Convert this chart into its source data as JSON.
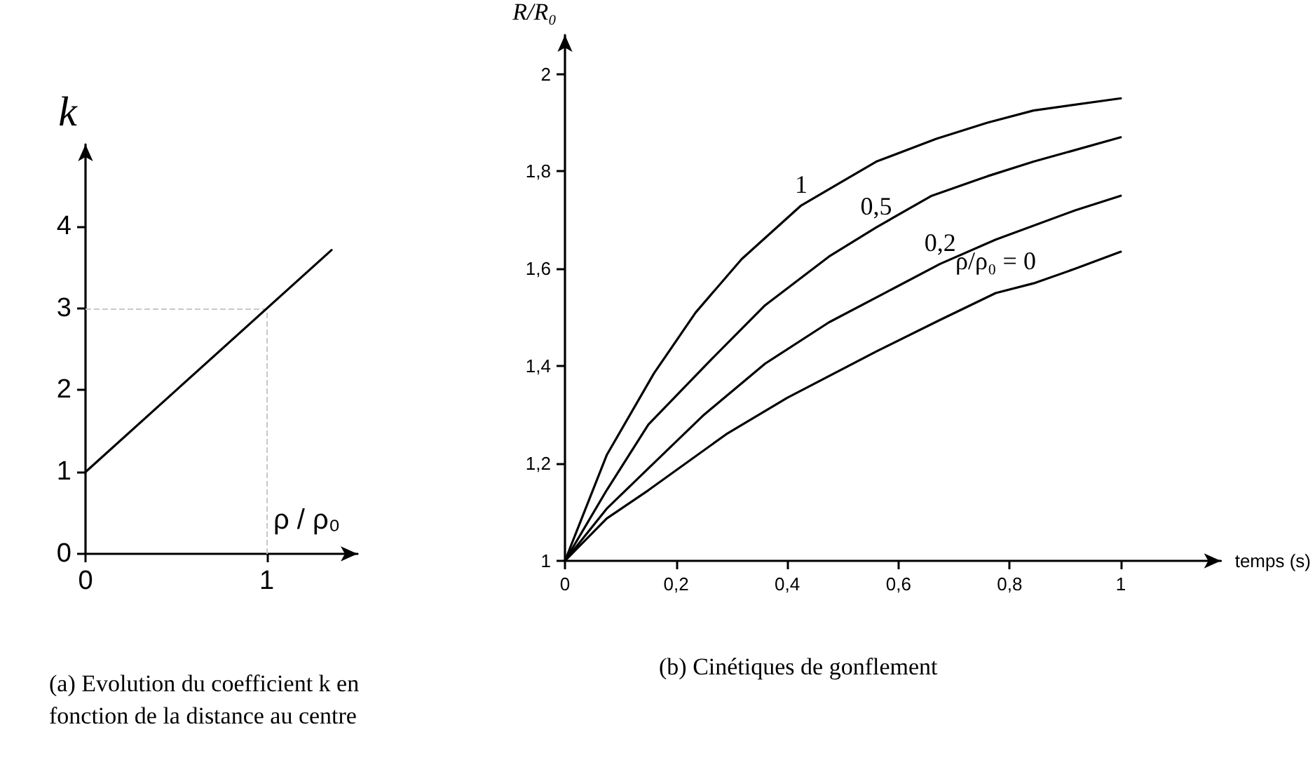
{
  "chart_data": [
    {
      "type": "line",
      "title": "(a) Evolution du coefficient k en fonction de la distance au centre",
      "xlabel": "ρ / ρ₀",
      "ylabel": "k",
      "x": [
        0,
        1.357
      ],
      "xlim": [
        0,
        1.5
      ],
      "ylim": [
        0,
        5
      ],
      "xticks": [
        0,
        1
      ],
      "yticks": [
        0,
        1,
        2,
        3,
        4
      ],
      "grid": false,
      "legend": false,
      "marker": "none",
      "line_style": "solid",
      "series": [
        {
          "color": "#000000",
          "values": [
            1,
            3.71
          ]
        }
      ],
      "ref_lines": [
        {
          "axis": "x",
          "value": 1,
          "color": "#c8c8c8",
          "line_style": "dashed"
        },
        {
          "axis": "y",
          "value": 3,
          "color": "#c8c8c8",
          "line_style": "dashed"
        }
      ]
    },
    {
      "type": "line",
      "title": "(b) Cinétiques de gonflement",
      "xlabel": "temps (s)",
      "ylabel": "R/R₀",
      "xlim": [
        0,
        1.18
      ],
      "ylim": [
        1,
        2.08
      ],
      "grid": false,
      "legend": false,
      "marker": "none",
      "line_style": "solid",
      "xticks": [
        {
          "value": 0,
          "label": "0"
        },
        {
          "value": 0.2,
          "label": "0,2"
        },
        {
          "value": 0.4,
          "label": "0,4"
        },
        {
          "value": 0.6,
          "label": "0,6"
        },
        {
          "value": 0.8,
          "label": "0,8"
        },
        {
          "value": 1,
          "label": "1"
        }
      ],
      "yticks": [
        {
          "value": 1,
          "label": "1"
        },
        {
          "value": 1.2,
          "label": "1,2"
        },
        {
          "value": 1.4,
          "label": "1,4"
        },
        {
          "value": 1.6,
          "label": "1,6"
        },
        {
          "value": 1.8,
          "label": "1,8"
        },
        {
          "value": 2,
          "label": "2"
        }
      ],
      "series": [
        {
          "name": "1",
          "color": "#000000",
          "x": [
            0,
            0.075,
            0.16,
            0.235,
            0.318,
            0.425,
            0.56,
            0.668,
            0.76,
            0.843,
            1.0
          ],
          "values": [
            1,
            1.217,
            1.385,
            1.51,
            1.62,
            1.73,
            1.82,
            1.867,
            1.9,
            1.925,
            1.95
          ]
        },
        {
          "name": "0,5",
          "color": "#000000",
          "x": [
            0,
            0.075,
            0.15,
            0.26,
            0.36,
            0.475,
            0.56,
            0.66,
            0.76,
            0.843,
            1.0
          ],
          "values": [
            1,
            1.145,
            1.28,
            1.41,
            1.525,
            1.625,
            1.685,
            1.75,
            1.79,
            1.82,
            1.87
          ]
        },
        {
          "name": "0,2",
          "color": "#000000",
          "x": [
            0,
            0.075,
            0.15,
            0.25,
            0.36,
            0.475,
            0.575,
            0.675,
            0.775,
            0.918,
            1.0
          ],
          "values": [
            1,
            1.107,
            1.19,
            1.3,
            1.405,
            1.49,
            1.55,
            1.61,
            1.66,
            1.72,
            1.75
          ]
        },
        {
          "name": "ρ/ρ₀ = 0",
          "color": "#000000",
          "x": [
            0,
            0.075,
            0.15,
            0.29,
            0.4,
            0.56,
            0.675,
            0.775,
            0.843,
            0.918,
            1.0
          ],
          "values": [
            1,
            1.087,
            1.145,
            1.26,
            1.335,
            1.43,
            1.495,
            1.55,
            1.57,
            1.6,
            1.635
          ]
        }
      ]
    }
  ]
}
